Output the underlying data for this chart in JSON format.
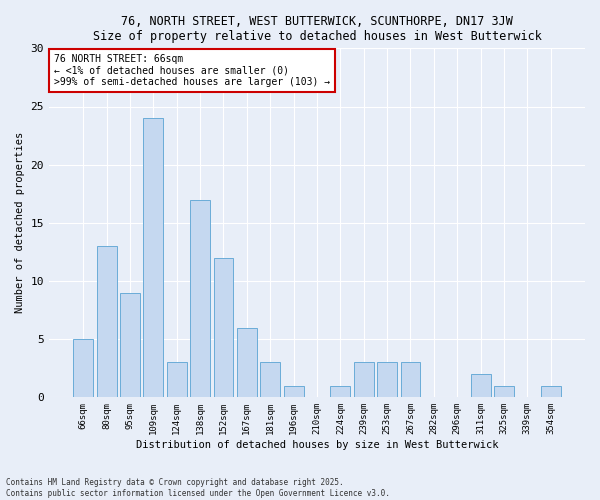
{
  "title": "76, NORTH STREET, WEST BUTTERWICK, SCUNTHORPE, DN17 3JW",
  "subtitle": "Size of property relative to detached houses in West Butterwick",
  "xlabel": "Distribution of detached houses by size in West Butterwick",
  "ylabel": "Number of detached properties",
  "bar_color": "#c5d8f0",
  "bar_edge_color": "#6aacd8",
  "categories": [
    "66sqm",
    "80sqm",
    "95sqm",
    "109sqm",
    "124sqm",
    "138sqm",
    "152sqm",
    "167sqm",
    "181sqm",
    "196sqm",
    "210sqm",
    "224sqm",
    "239sqm",
    "253sqm",
    "267sqm",
    "282sqm",
    "296sqm",
    "311sqm",
    "325sqm",
    "339sqm",
    "354sqm"
  ],
  "values": [
    5,
    13,
    9,
    24,
    3,
    17,
    12,
    6,
    3,
    1,
    0,
    1,
    3,
    3,
    3,
    0,
    0,
    2,
    1,
    0,
    1
  ],
  "ylim": [
    0,
    30
  ],
  "yticks": [
    0,
    5,
    10,
    15,
    20,
    25,
    30
  ],
  "annotation_box_text": "76 NORTH STREET: 66sqm\n← <1% of detached houses are smaller (0)\n>99% of semi-detached houses are larger (103) →",
  "annotation_box_color": "#ffffff",
  "annotation_box_edgecolor": "#cc0000",
  "highlight_bar_index": 0,
  "bg_color": "#e8eef8",
  "grid_color": "#ffffff",
  "footer_line1": "Contains HM Land Registry data © Crown copyright and database right 2025.",
  "footer_line2": "Contains public sector information licensed under the Open Government Licence v3.0."
}
